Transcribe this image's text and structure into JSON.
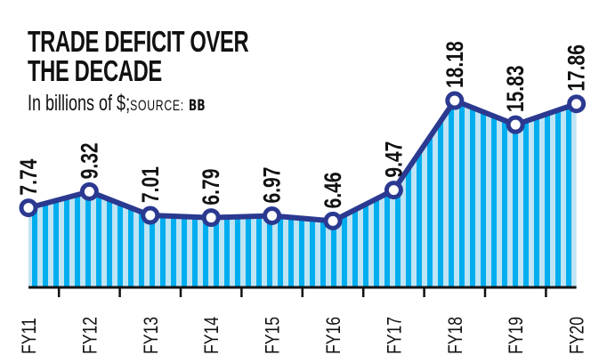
{
  "chart_data": {
    "type": "area",
    "title_line1": "TRADE DEFICIT OVER",
    "title_line2": "THE DECADE",
    "subtitle": "In billions of $;",
    "source_label": "SOURCE:",
    "source": "BB",
    "categories": [
      "FY11",
      "FY12",
      "FY13",
      "FY14",
      "FY15",
      "FY16",
      "FY17",
      "FY18",
      "FY19",
      "FY20"
    ],
    "values": [
      7.74,
      9.32,
      7.01,
      6.79,
      6.97,
      6.46,
      9.47,
      18.18,
      15.83,
      17.86
    ],
    "labels": [
      "7.74",
      "9.32",
      "7.01",
      "6.79",
      "6.97",
      "6.46",
      "9.47",
      "18.18",
      "15.83",
      "17.86"
    ],
    "ylim": [
      0,
      20
    ],
    "grid": false,
    "colors": {
      "line": "#2b3990",
      "fill": "#00aeef",
      "fill_light": "#bfe4f3",
      "marker": "#ffffff"
    }
  }
}
